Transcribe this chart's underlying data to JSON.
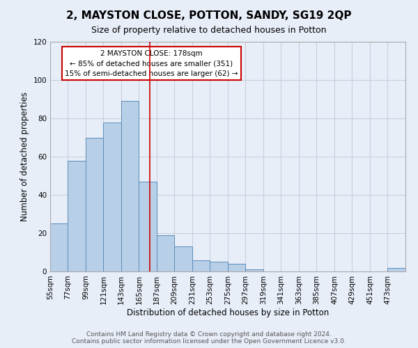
{
  "title": "2, MAYSTON CLOSE, POTTON, SANDY, SG19 2QP",
  "subtitle": "Size of property relative to detached houses in Potton",
  "xlabel": "Distribution of detached houses by size in Potton",
  "ylabel": "Number of detached properties",
  "bin_edges": [
    55,
    77,
    99,
    121,
    143,
    165,
    187,
    209,
    231,
    253,
    275,
    297,
    319,
    341,
    363,
    385,
    407,
    429,
    451,
    473,
    495
  ],
  "bar_heights": [
    25,
    58,
    70,
    78,
    89,
    47,
    19,
    13,
    6,
    5,
    4,
    1,
    0,
    0,
    0,
    0,
    0,
    0,
    0,
    2
  ],
  "bar_color": "#b8cfe8",
  "bar_edge_color": "#5b8db8",
  "grid_color": "#c8d0dc",
  "bg_color": "#e8eef8",
  "vline_x": 178,
  "vline_color": "#cc0000",
  "annotation_title": "2 MAYSTON CLOSE: 178sqm",
  "annotation_line1": "← 85% of detached houses are smaller (351)",
  "annotation_line2": "15% of semi-detached houses are larger (62) →",
  "annotation_box_color": "#ffffff",
  "annotation_box_edge": "#cc0000",
  "ylim": [
    0,
    120
  ],
  "yticks": [
    0,
    20,
    40,
    60,
    80,
    100,
    120
  ],
  "footer1": "Contains HM Land Registry data © Crown copyright and database right 2024.",
  "footer2": "Contains public sector information licensed under the Open Government Licence v3.0.",
  "title_fontsize": 11,
  "subtitle_fontsize": 9,
  "axis_label_fontsize": 8.5,
  "tick_fontsize": 7.5,
  "annot_fontsize": 7.5,
  "footer_fontsize": 6.5
}
